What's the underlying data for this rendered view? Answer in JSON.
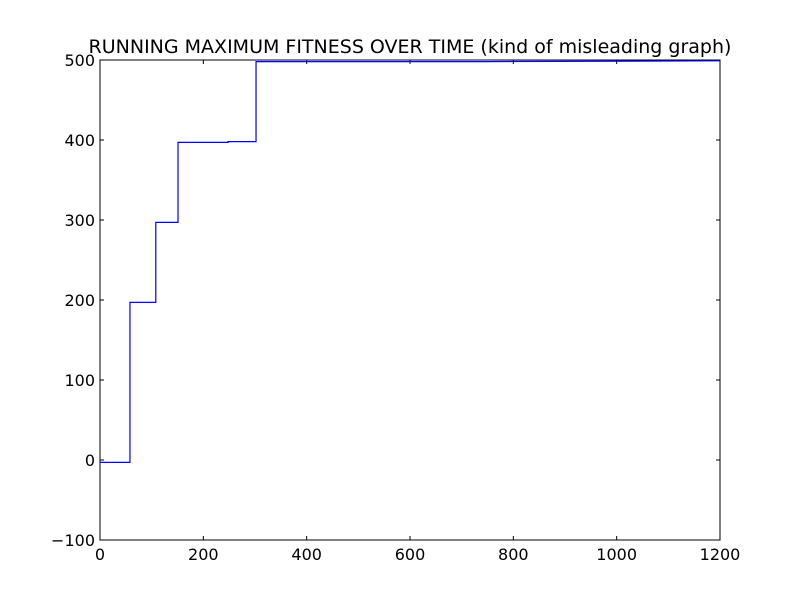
{
  "chart_data": {
    "type": "line",
    "title": "RUNNING MAXIMUM FITNESS OVER TIME (kind of misleading graph)",
    "xlabel": "",
    "ylabel": "",
    "xlim": [
      0,
      1200
    ],
    "ylim": [
      -100,
      500
    ],
    "x_ticks": [
      0,
      200,
      400,
      600,
      800,
      1000,
      1200
    ],
    "y_ticks": [
      -100,
      0,
      100,
      200,
      300,
      400,
      500
    ],
    "x_tick_labels": [
      "0",
      "200",
      "400",
      "600",
      "800",
      "1000",
      "1200"
    ],
    "y_tick_labels": [
      "−100",
      "0",
      "100",
      "200",
      "300",
      "400",
      "500"
    ],
    "grid": false,
    "line_color": "#0000ff",
    "series": [
      {
        "x": [
          0,
          58,
          58,
          108,
          108,
          151,
          151,
          248,
          248,
          302,
          302,
          750,
          1200
        ],
        "y": [
          -3,
          -3,
          197,
          197,
          297,
          297,
          397,
          397,
          398,
          398,
          498,
          498,
          499
        ]
      }
    ]
  }
}
